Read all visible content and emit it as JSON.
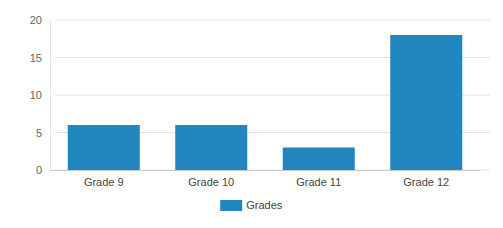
{
  "chart_data": {
    "type": "bar",
    "categories": [
      "Grade 9",
      "Grade 10",
      "Grade 11",
      "Grade 12"
    ],
    "series": [
      {
        "name": "Grades",
        "color": "#2185c0",
        "values": [
          6,
          6,
          3,
          18
        ]
      }
    ],
    "ylim": [
      0,
      20
    ],
    "yticks": [
      0,
      5,
      10,
      15,
      20
    ],
    "grid": true,
    "legend": "bottom"
  }
}
